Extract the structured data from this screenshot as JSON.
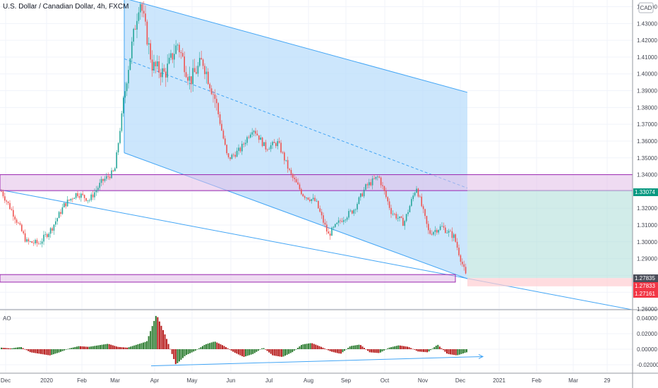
{
  "header": {
    "title": "U.S. Dollar / Canadian Dollar, 4h, FXCM",
    "currency_badge": "CAD",
    "indicator_label": "AO"
  },
  "colors": {
    "bull_candle": "#26a69a",
    "bear_candle": "#ef5350",
    "channel_fill": "#bbdefb",
    "channel_line": "#42a5f5",
    "zone_fill": "#e1bee7",
    "zone_border": "#9c27b0",
    "long_profit_fill": "#b2dfdb",
    "long_stop_fill": "#ffcdd2",
    "ao_up": "#2e7d32",
    "ao_down": "#b71c1c",
    "price_tag_green": "#089981",
    "price_tag_dark": "#4a4e5a",
    "price_tag_red": "#f23645"
  },
  "chart_data": [
    {
      "type": "candlestick",
      "title": "U.S. Dollar / Canadian Dollar, 4h, FXCM",
      "x_ticks": [
        "Dec",
        "2020",
        "Feb",
        "Mar",
        "Apr",
        "May",
        "Jun",
        "Jul",
        "Aug",
        "Sep",
        "Oct",
        "Nov",
        "Dec",
        "2021",
        "Feb",
        "Mar",
        "29"
      ],
      "y_ticks": [
        1.26,
        1.27,
        1.28,
        1.29,
        1.3,
        1.31,
        1.32,
        1.33,
        1.34,
        1.35,
        1.36,
        1.37,
        1.38,
        1.39,
        1.4,
        1.41,
        1.42,
        1.43,
        1.44
      ],
      "ylim": [
        1.26,
        1.444
      ],
      "price_path": [
        {
          "x": "Dec",
          "y": 1.33
        },
        {
          "x": "mid-Dec",
          "y": 1.316
        },
        {
          "x": "late-Dec",
          "y": 1.3
        },
        {
          "x": "2020",
          "y": 1.299
        },
        {
          "x": "mid-Jan",
          "y": 1.308
        },
        {
          "x": "Feb",
          "y": 1.322
        },
        {
          "x": "mid-Feb",
          "y": 1.329
        },
        {
          "x": "late-Feb",
          "y": 1.325
        },
        {
          "x": "Mar",
          "y": 1.336
        },
        {
          "x": "early-Mar",
          "y": 1.342
        },
        {
          "x": "mid-Mar",
          "y": 1.4
        },
        {
          "x": "late-Mar",
          "y": 1.445
        },
        {
          "x": "Apr",
          "y": 1.405
        },
        {
          "x": "mid-Apr",
          "y": 1.4
        },
        {
          "x": "late-Apr",
          "y": 1.418
        },
        {
          "x": "May",
          "y": 1.396
        },
        {
          "x": "mid-May",
          "y": 1.408
        },
        {
          "x": "late-May",
          "y": 1.385
        },
        {
          "x": "Jun",
          "y": 1.349
        },
        {
          "x": "mid-Jun",
          "y": 1.355
        },
        {
          "x": "late-Jun",
          "y": 1.368
        },
        {
          "x": "Jul",
          "y": 1.356
        },
        {
          "x": "mid-Jul",
          "y": 1.359
        },
        {
          "x": "late-Jul",
          "y": 1.34
        },
        {
          "x": "Aug",
          "y": 1.328
        },
        {
          "x": "mid-Aug",
          "y": 1.324
        },
        {
          "x": "late-Aug",
          "y": 1.304
        },
        {
          "x": "Sep",
          "y": 1.313
        },
        {
          "x": "mid-Sep",
          "y": 1.319
        },
        {
          "x": "late-Sep",
          "y": 1.333
        },
        {
          "x": "Oct",
          "y": 1.339
        },
        {
          "x": "mid-Oct",
          "y": 1.318
        },
        {
          "x": "late-Oct",
          "y": 1.311
        },
        {
          "x": "Nov",
          "y": 1.333
        },
        {
          "x": "early-Nov",
          "y": 1.305
        },
        {
          "x": "mid-Nov",
          "y": 1.309
        },
        {
          "x": "late-Nov",
          "y": 1.303
        },
        {
          "x": "Dec",
          "y": 1.278
        }
      ],
      "channel": {
        "upper_start": 1.445,
        "upper_end": 1.389,
        "mid_start": 1.409,
        "mid_end": 1.332,
        "lower_start": 1.353,
        "lower_end": 1.278
      },
      "trendline": {
        "start": 1.331,
        "end": 1.2595
      },
      "zones": [
        {
          "top": 1.34,
          "bottom": 1.3305
        },
        {
          "top": 1.2805,
          "bottom": 1.276
        }
      ],
      "position": {
        "entry": 1.2784,
        "target": 1.3307,
        "stop": 1.2735
      },
      "price_tags": [
        "1.33074",
        "1.27835",
        "1.27833",
        "1.27161"
      ]
    },
    {
      "type": "bar",
      "title": "AO",
      "y_ticks": [
        "0.04000",
        "0.02000",
        "0.00000",
        "-0.02000"
      ],
      "ylim": [
        -0.03,
        0.05
      ],
      "x_ticks": [
        "Dec",
        "2020",
        "Feb",
        "Mar",
        "Apr",
        "May",
        "Jun",
        "Jul",
        "Aug",
        "Sep",
        "Oct",
        "Nov",
        "Dec",
        "2021",
        "Feb",
        "Mar",
        "29"
      ],
      "values": [
        0.002,
        0.001,
        0.003,
        -0.004,
        -0.006,
        -0.008,
        -0.004,
        0.001,
        0.004,
        0.003,
        0.005,
        0.007,
        0.003,
        0.002,
        0.006,
        0.01,
        0.045,
        0.015,
        -0.02,
        -0.008,
        -0.002,
        0.006,
        0.01,
        0.004,
        -0.004,
        -0.01,
        -0.006,
        0.002,
        -0.008,
        -0.01,
        -0.004,
        0.006,
        0.008,
        0.003,
        -0.003,
        -0.006,
        0.004,
        0.006,
        -0.004,
        -0.005,
        0.002,
        0.005,
        0.003,
        -0.003,
        -0.004,
        0.006,
        -0.006,
        -0.008,
        -0.004
      ]
    }
  ]
}
